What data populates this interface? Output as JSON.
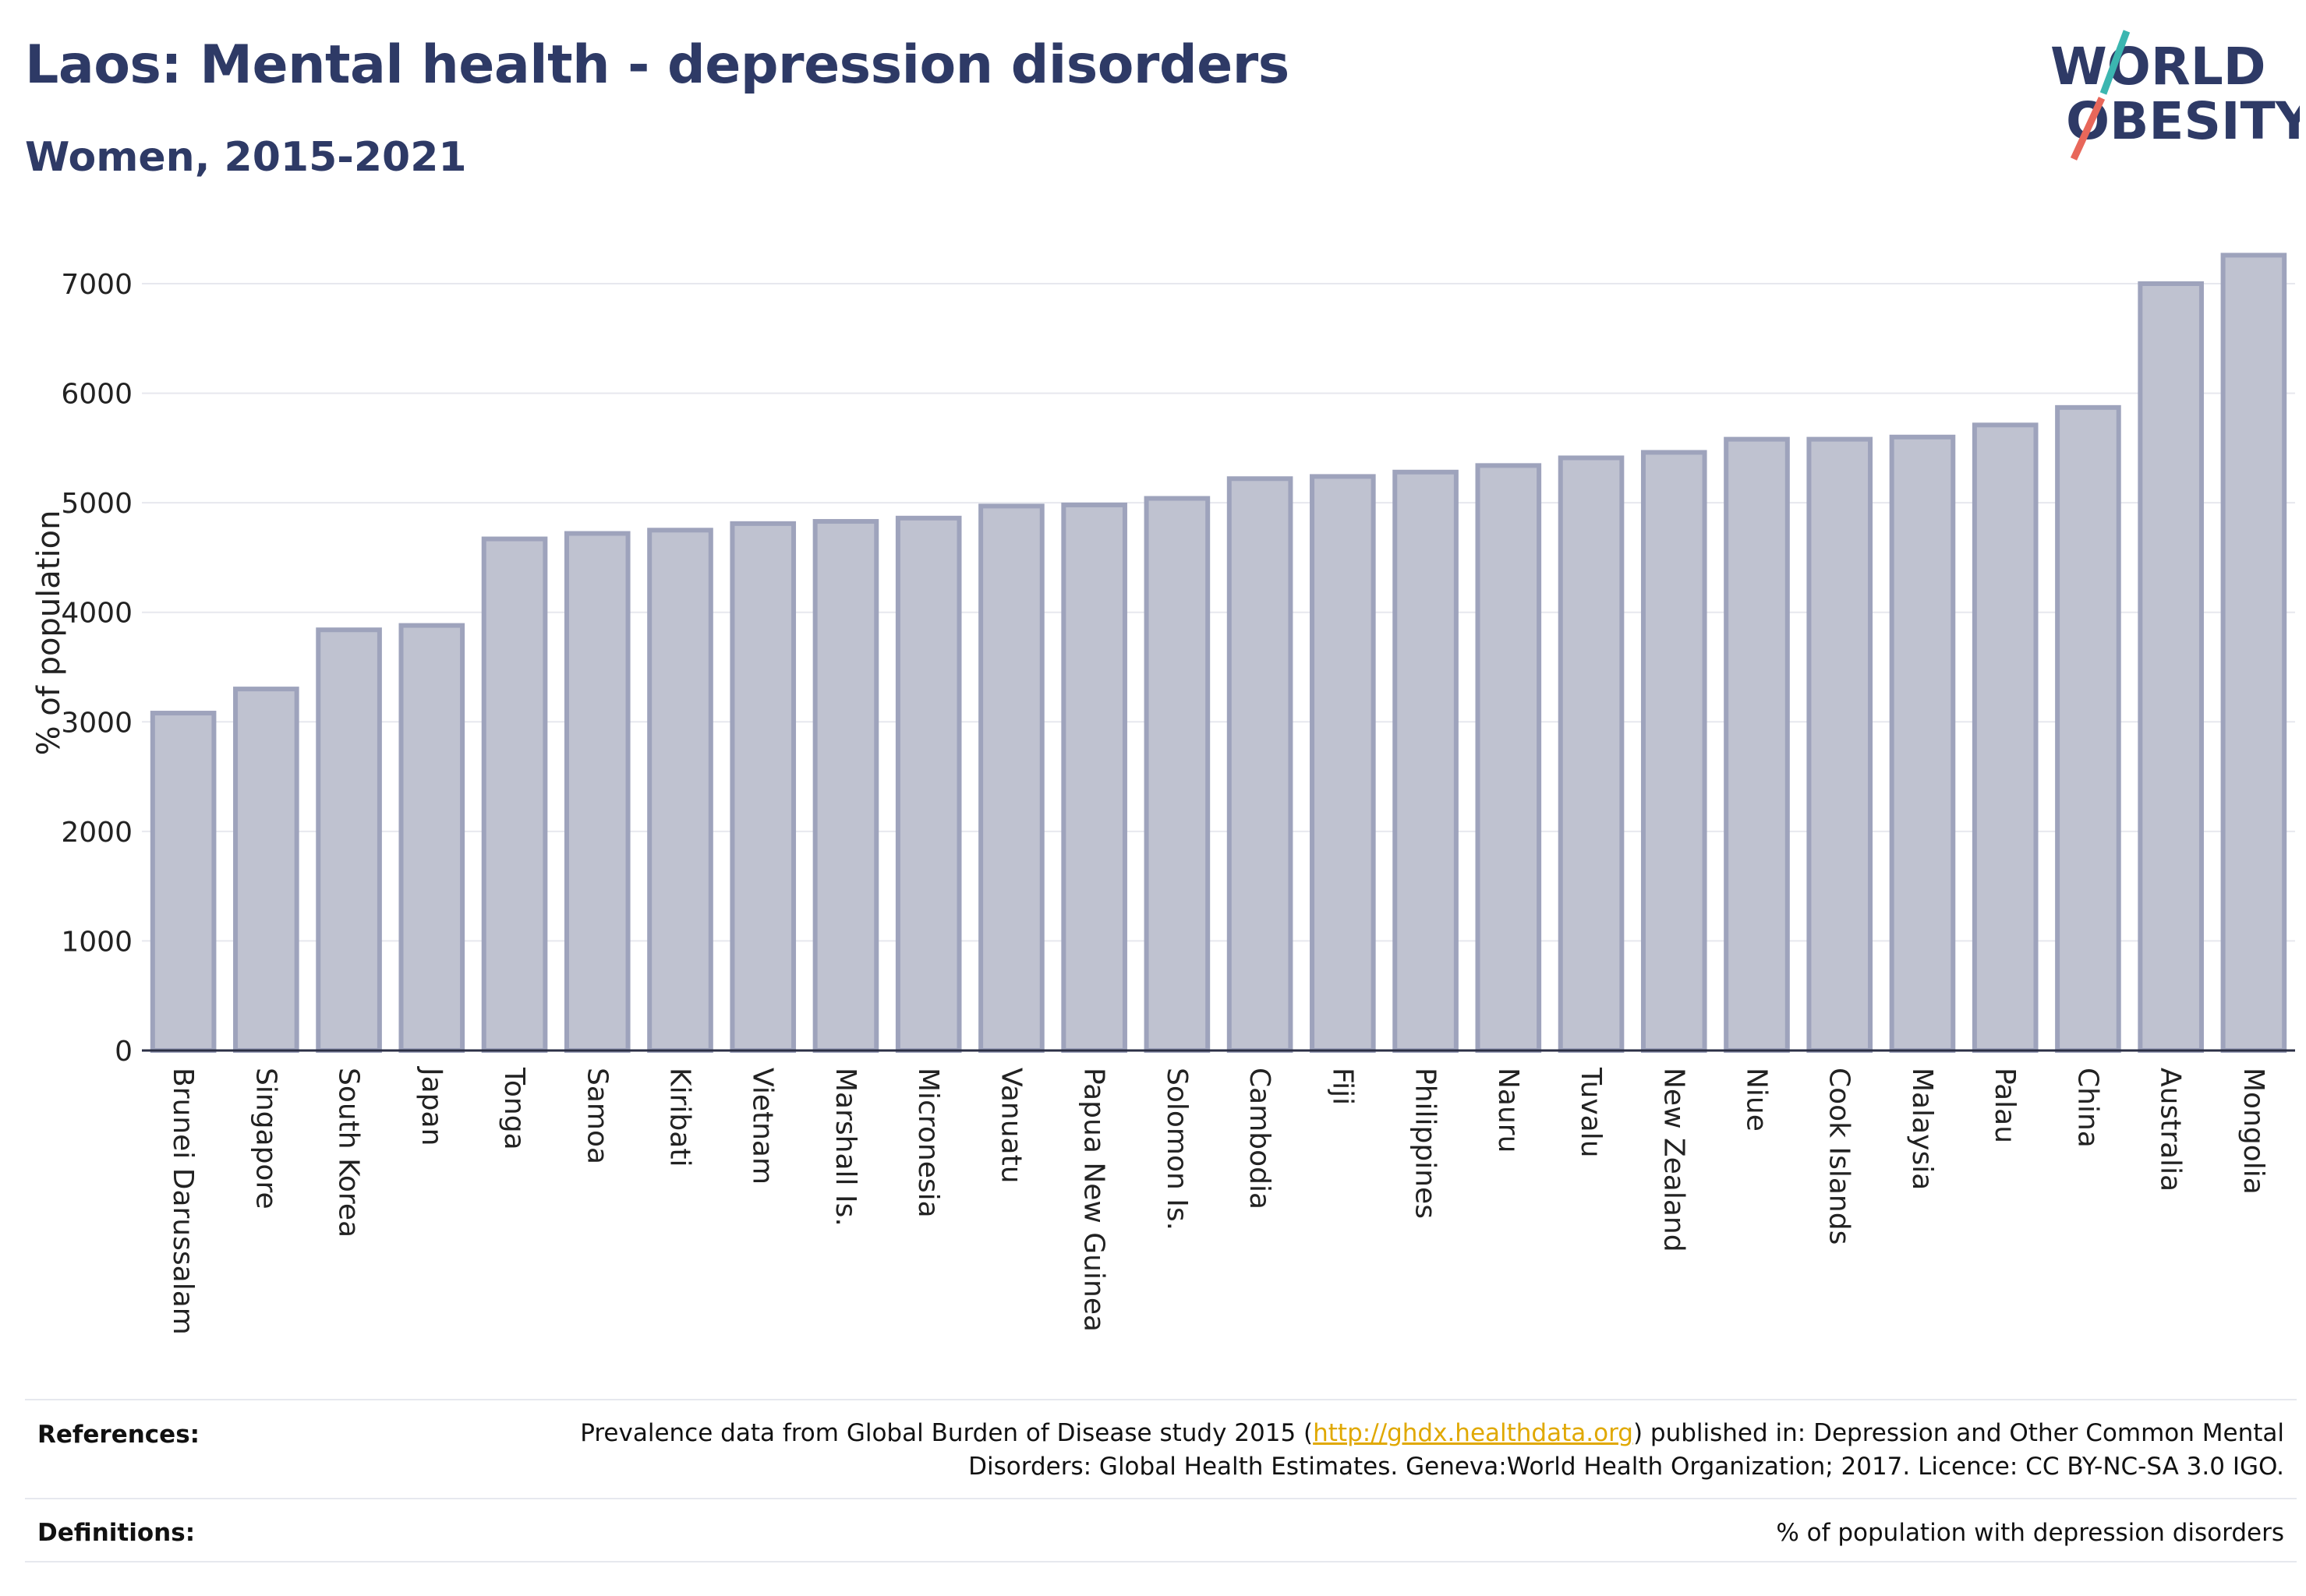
{
  "header": {
    "title": "Laos: Mental health - depression disorders",
    "subtitle": "Women, 2015-2021"
  },
  "logo": {
    "line1": "WORLD",
    "line2": "OBESITY",
    "accent_colors": [
      "#3bb6b0",
      "#e8675a"
    ],
    "text_color": "#2e3a66"
  },
  "chart_data": {
    "type": "bar",
    "title": "Laos: Mental health - depression disorders",
    "subtitle": "Women, 2015-2021",
    "ylabel": "% of population",
    "xlabel": "",
    "ylim": [
      0,
      7300
    ],
    "yticks": [
      0,
      1000,
      2000,
      3000,
      4000,
      5000,
      6000,
      7000
    ],
    "grid": true,
    "bar_fill": "#bfc2d0",
    "bar_stroke": "#9ea3bc",
    "categories": [
      "Brunei Darussalam",
      "Singapore",
      "South Korea",
      "Japan",
      "Tonga",
      "Samoa",
      "Kiribati",
      "Vietnam",
      "Marshall Is.",
      "Micronesia",
      "Vanuatu",
      "Papua New Guinea",
      "Solomon Is.",
      "Cambodia",
      "Fiji",
      "Philippines",
      "Nauru",
      "Tuvalu",
      "New Zealand",
      "Niue",
      "Cook Islands",
      "Malaysia",
      "Palau",
      "China",
      "Australia",
      "Mongolia"
    ],
    "values": [
      3080,
      3300,
      3840,
      3880,
      4670,
      4720,
      4750,
      4810,
      4830,
      4860,
      4970,
      4980,
      5040,
      5220,
      5240,
      5280,
      5340,
      5410,
      5460,
      5580,
      5580,
      5600,
      5710,
      5870,
      7000,
      7260
    ]
  },
  "footer": {
    "references_label": "References:",
    "references_text_before": "Prevalence data from Global Burden of Disease study 2015 (",
    "references_link": "http://ghdx.healthdata.org",
    "references_text_after": ") published in: Depression and Other Common Mental Disorders: Global Health Estimates. Geneva:World Health Organization; 2017. Licence: CC BY-NC-SA 3.0 IGO.",
    "definitions_label": "Definitions:",
    "definitions_text": "% of population with depression disorders"
  }
}
